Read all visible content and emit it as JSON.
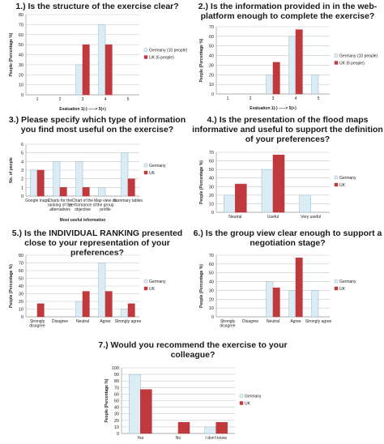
{
  "colors": {
    "germany": "#dcecf5",
    "germany_stroke": "#8fb6cc",
    "uk": "#c0393c",
    "grid": "#c8c8c8",
    "axis": "#9a9a9a"
  },
  "chart_data": [
    {
      "type": "bar",
      "title": "1.) Is the structure of the exercise clear?",
      "xlabel": "Evaluation 1(-) -----> 5(+)",
      "ylabel": "People (Percentage %)",
      "categories": [
        "1",
        "2",
        "3",
        "4",
        "5"
      ],
      "ylim": [
        0,
        80
      ],
      "yticks": [
        0,
        10,
        20,
        30,
        40,
        50,
        60,
        70,
        80
      ],
      "series": [
        {
          "name": "Germany (10 people)",
          "values": [
            0,
            0,
            30,
            70,
            0
          ]
        },
        {
          "name": "UK (6 people)",
          "values": [
            0,
            0,
            50,
            50,
            0
          ]
        }
      ],
      "legend": "right",
      "grid": true
    },
    {
      "type": "bar",
      "title": "2.) Is the information provided in in the web-platform enough to complete the exercise?",
      "xlabel": "Evaluation 1(-) -----> 5(+)",
      "ylabel": "People (Percentage %)",
      "categories": [
        "1",
        "2",
        "3",
        "4",
        "5"
      ],
      "ylim": [
        0,
        70
      ],
      "yticks": [
        0,
        10,
        20,
        30,
        40,
        50,
        60,
        70
      ],
      "series": [
        {
          "name": "Germany (10 people)",
          "values": [
            0,
            0,
            20,
            60,
            20
          ]
        },
        {
          "name": "UK (6 people)",
          "values": [
            0,
            0,
            33,
            67,
            0
          ]
        }
      ],
      "legend": "right",
      "grid": true
    },
    {
      "type": "bar",
      "title": "3.) Please specify which type of information you find most useful on the exercise?",
      "xlabel": "Most useful information",
      "ylabel": "No. of people",
      "categories": [
        "Google maps",
        "Charts for the ranking of the alternatives",
        "Chart of the performance of objective",
        "Map view on the group profile",
        "Summary tables"
      ],
      "ylim": [
        0,
        6
      ],
      "yticks": [
        0,
        1,
        2,
        3,
        4,
        5,
        6
      ],
      "series": [
        {
          "name": "Germany",
          "values": [
            3,
            4,
            4,
            1,
            5
          ]
        },
        {
          "name": "UK",
          "values": [
            3,
            1,
            1,
            0,
            2
          ]
        }
      ],
      "legend": "right",
      "grid": true
    },
    {
      "type": "bar",
      "title": "4.) Is the presentation of the flood maps informative and useful to support the definition of your preferences?",
      "xlabel": "",
      "ylabel": "People (Percentage %)",
      "categories": [
        "Neutral",
        "Useful",
        "Very useful"
      ],
      "ylim": [
        0,
        70
      ],
      "yticks": [
        0,
        10,
        20,
        30,
        40,
        50,
        60,
        70
      ],
      "series": [
        {
          "name": "Germany",
          "values": [
            20,
            50,
            20
          ]
        },
        {
          "name": "UK",
          "values": [
            33,
            67,
            0
          ]
        }
      ],
      "legend": "right",
      "grid": true
    },
    {
      "type": "bar",
      "title": "5.) Is the INDIVIDUAL RANKING presented close to your representation of your preferences?",
      "xlabel": "",
      "ylabel": "People (Percentage %)",
      "categories": [
        "Strongly disagree",
        "Disagree",
        "Neutral",
        "Agree",
        "Strongly agree"
      ],
      "ylim": [
        0,
        80
      ],
      "yticks": [
        0,
        10,
        20,
        30,
        40,
        50,
        60,
        70,
        80
      ],
      "series": [
        {
          "name": "Germany",
          "values": [
            0,
            0,
            20,
            70,
            10
          ]
        },
        {
          "name": "UK",
          "values": [
            17,
            0,
            33,
            33,
            17
          ]
        }
      ],
      "legend": "right",
      "grid": true
    },
    {
      "type": "bar",
      "title": "6.) Is the group view clear enough to support a negotiation stage?",
      "xlabel": "",
      "ylabel": "People (Percentage %)",
      "categories": [
        "Strongly disagree",
        "Disagree",
        "Neutral",
        "Agree",
        "Strongly agree"
      ],
      "ylim": [
        0,
        70
      ],
      "yticks": [
        0,
        10,
        20,
        30,
        40,
        50,
        60,
        70
      ],
      "series": [
        {
          "name": "Germany",
          "values": [
            0,
            0,
            40,
            30,
            30
          ]
        },
        {
          "name": "UK",
          "values": [
            0,
            0,
            33,
            67,
            0
          ]
        }
      ],
      "legend": "right",
      "grid": true
    },
    {
      "type": "bar",
      "title": "7.) Would you recommend the exercise to your colleague?",
      "xlabel": "",
      "ylabel": "People (Percentage %)",
      "categories": [
        "Yes",
        "No",
        "I don't know"
      ],
      "ylim": [
        0,
        100
      ],
      "yticks": [
        0,
        10,
        20,
        30,
        40,
        50,
        60,
        70,
        80,
        90,
        100
      ],
      "series": [
        {
          "name": "Germany",
          "values": [
            90,
            0,
            10
          ]
        },
        {
          "name": "UK",
          "values": [
            67,
            17,
            17
          ]
        }
      ],
      "legend": "right",
      "grid": true
    }
  ]
}
